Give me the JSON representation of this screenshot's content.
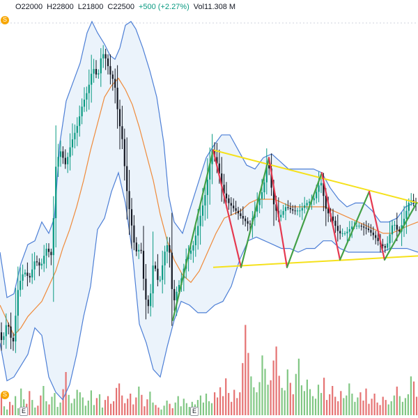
{
  "legend": {
    "open": "O22000",
    "high": "H22800",
    "low": "L21800",
    "close": "C22500",
    "change": "+500 (+2.27%)",
    "volume": "Vol11.308 M"
  },
  "events": [
    {
      "icon": "dividend-icon",
      "label": "S"
    },
    {
      "icon": "dividend-icon",
      "label": "S"
    },
    {
      "icon": "earnings-icon",
      "label": "E"
    },
    {
      "icon": "earnings-icon",
      "label": "E"
    }
  ],
  "colors": {
    "up": "#089981",
    "down": "#131722",
    "volume_up": "#81c784",
    "volume_down": "#e57373",
    "band": "#4d7fd6",
    "band_fill": "#dbe9f7",
    "ma": "#ef8a3a",
    "trendline": "#f5e11b",
    "zigzag_up": "#43a047",
    "zigzag_down": "#e53950"
  },
  "chart_data": {
    "type": "candlestick",
    "y_range": [
      18500,
      29000
    ],
    "volume_range": [
      0,
      16
    ],
    "price_path": [
      [
        0,
        20600
      ],
      [
        5,
        20300
      ],
      [
        12,
        20900
      ],
      [
        20,
        20200
      ],
      [
        28,
        21800
      ],
      [
        36,
        22200
      ],
      [
        44,
        22000
      ],
      [
        52,
        22500
      ],
      [
        60,
        22300
      ],
      [
        68,
        22800
      ],
      [
        76,
        22600
      ],
      [
        82,
        25000
      ],
      [
        88,
        25400
      ],
      [
        96,
        25000
      ],
      [
        104,
        25600
      ],
      [
        112,
        26000
      ],
      [
        120,
        26600
      ],
      [
        128,
        27000
      ],
      [
        135,
        27600
      ],
      [
        142,
        27300
      ],
      [
        148,
        28000
      ],
      [
        154,
        27800
      ],
      [
        160,
        27400
      ],
      [
        166,
        27200
      ],
      [
        172,
        26200
      ],
      [
        178,
        25600
      ],
      [
        182,
        24600
      ],
      [
        186,
        24000
      ],
      [
        190,
        23500
      ],
      [
        196,
        22700
      ],
      [
        204,
        22800
      ],
      [
        210,
        21500
      ],
      [
        216,
        21200
      ],
      [
        222,
        22500
      ],
      [
        230,
        21800
      ],
      [
        238,
        22700
      ],
      [
        244,
        23000
      ],
      [
        250,
        21300
      ],
      [
        256,
        21700
      ],
      [
        262,
        22000
      ],
      [
        270,
        22600
      ],
      [
        278,
        22800
      ],
      [
        286,
        23400
      ],
      [
        296,
        24200
      ],
      [
        306,
        25400
      ],
      [
        314,
        25000
      ],
      [
        322,
        24300
      ],
      [
        330,
        24000
      ],
      [
        340,
        23800
      ],
      [
        350,
        23600
      ],
      [
        360,
        23400
      ],
      [
        370,
        23900
      ],
      [
        380,
        24400
      ],
      [
        386,
        25200
      ],
      [
        394,
        24000
      ],
      [
        402,
        23600
      ],
      [
        412,
        23900
      ],
      [
        422,
        23800
      ],
      [
        432,
        23800
      ],
      [
        442,
        24000
      ],
      [
        452,
        24100
      ],
      [
        462,
        24600
      ],
      [
        470,
        23800
      ],
      [
        478,
        23600
      ],
      [
        488,
        23200
      ],
      [
        498,
        23200
      ],
      [
        508,
        23400
      ],
      [
        518,
        23400
      ],
      [
        530,
        23300
      ],
      [
        540,
        23100
      ],
      [
        548,
        22900
      ],
      [
        556,
        22800
      ],
      [
        566,
        23500
      ],
      [
        574,
        23200
      ],
      [
        582,
        23600
      ],
      [
        590,
        24100
      ],
      [
        598,
        24000
      ]
    ],
    "upper_band_path": [
      [
        0,
        22700
      ],
      [
        10,
        21500
      ],
      [
        20,
        21600
      ],
      [
        30,
        22400
      ],
      [
        40,
        22900
      ],
      [
        50,
        23000
      ],
      [
        60,
        23500
      ],
      [
        70,
        23200
      ],
      [
        78,
        23600
      ],
      [
        86,
        25600
      ],
      [
        95,
        26700
      ],
      [
        105,
        27200
      ],
      [
        115,
        27700
      ],
      [
        125,
        28500
      ],
      [
        132,
        28800
      ],
      [
        140,
        28500
      ],
      [
        150,
        28200
      ],
      [
        158,
        27900
      ],
      [
        165,
        27800
      ],
      [
        172,
        28100
      ],
      [
        180,
        28700
      ],
      [
        188,
        28800
      ],
      [
        195,
        28600
      ],
      [
        205,
        28100
      ],
      [
        215,
        27500
      ],
      [
        225,
        26800
      ],
      [
        235,
        25600
      ],
      [
        242,
        24200
      ],
      [
        250,
        23500
      ],
      [
        262,
        23200
      ],
      [
        272,
        23800
      ],
      [
        284,
        24500
      ],
      [
        296,
        25200
      ],
      [
        306,
        25500
      ],
      [
        318,
        25800
      ],
      [
        330,
        25800
      ],
      [
        342,
        25400
      ],
      [
        354,
        25000
      ],
      [
        366,
        24900
      ],
      [
        378,
        25200
      ],
      [
        390,
        25300
      ],
      [
        402,
        25100
      ],
      [
        414,
        24900
      ],
      [
        426,
        24900
      ],
      [
        438,
        24900
      ],
      [
        450,
        24900
      ],
      [
        462,
        24800
      ],
      [
        474,
        24400
      ],
      [
        486,
        24100
      ],
      [
        498,
        23900
      ],
      [
        510,
        24000
      ],
      [
        522,
        24000
      ],
      [
        534,
        23800
      ],
      [
        546,
        23500
      ],
      [
        558,
        23500
      ],
      [
        570,
        23600
      ],
      [
        582,
        23900
      ],
      [
        594,
        24000
      ],
      [
        600,
        24000
      ]
    ],
    "lower_band_path": [
      [
        0,
        20300
      ],
      [
        10,
        19300
      ],
      [
        20,
        19400
      ],
      [
        30,
        19700
      ],
      [
        40,
        20000
      ],
      [
        50,
        20700
      ],
      [
        60,
        20500
      ],
      [
        70,
        19400
      ],
      [
        80,
        19000
      ],
      [
        90,
        18800
      ],
      [
        100,
        19200
      ],
      [
        110,
        20000
      ],
      [
        120,
        21000
      ],
      [
        130,
        21800
      ],
      [
        140,
        23300
      ],
      [
        150,
        23600
      ],
      [
        160,
        24300
      ],
      [
        170,
        24800
      ],
      [
        180,
        24000
      ],
      [
        190,
        22700
      ],
      [
        200,
        20800
      ],
      [
        210,
        20300
      ],
      [
        220,
        19600
      ],
      [
        230,
        19400
      ],
      [
        240,
        20200
      ],
      [
        250,
        20900
      ],
      [
        260,
        21400
      ],
      [
        272,
        21300
      ],
      [
        284,
        21100
      ],
      [
        296,
        21100
      ],
      [
        308,
        21300
      ],
      [
        320,
        21400
      ],
      [
        332,
        21800
      ],
      [
        344,
        22500
      ],
      [
        356,
        23000
      ],
      [
        368,
        23100
      ],
      [
        380,
        23000
      ],
      [
        392,
        22900
      ],
      [
        404,
        22800
      ],
      [
        416,
        22800
      ],
      [
        428,
        22700
      ],
      [
        440,
        22800
      ],
      [
        452,
        22800
      ],
      [
        464,
        23000
      ],
      [
        476,
        23000
      ],
      [
        488,
        22800
      ],
      [
        500,
        22700
      ],
      [
        512,
        22700
      ],
      [
        524,
        22700
      ],
      [
        536,
        22700
      ],
      [
        548,
        22700
      ],
      [
        560,
        22800
      ],
      [
        572,
        22800
      ],
      [
        584,
        22800
      ],
      [
        600,
        22700
      ]
    ],
    "moving_average_path": [
      [
        0,
        21300
      ],
      [
        10,
        20900
      ],
      [
        20,
        20500
      ],
      [
        30,
        20700
      ],
      [
        40,
        21000
      ],
      [
        50,
        21200
      ],
      [
        60,
        21400
      ],
      [
        70,
        21800
      ],
      [
        80,
        22200
      ],
      [
        90,
        22800
      ],
      [
        100,
        23300
      ],
      [
        110,
        23900
      ],
      [
        120,
        24600
      ],
      [
        130,
        25400
      ],
      [
        140,
        26100
      ],
      [
        150,
        26800
      ],
      [
        160,
        27100
      ],
      [
        170,
        27300
      ],
      [
        180,
        27000
      ],
      [
        190,
        26600
      ],
      [
        200,
        26000
      ],
      [
        210,
        25300
      ],
      [
        220,
        24600
      ],
      [
        230,
        23700
      ],
      [
        240,
        23000
      ],
      [
        250,
        22500
      ],
      [
        262,
        22100
      ],
      [
        274,
        21900
      ],
      [
        286,
        22200
      ],
      [
        298,
        22700
      ],
      [
        310,
        23200
      ],
      [
        322,
        23600
      ],
      [
        334,
        23700
      ],
      [
        346,
        23800
      ],
      [
        358,
        24000
      ],
      [
        370,
        24100
      ],
      [
        382,
        24100
      ],
      [
        394,
        24100
      ],
      [
        406,
        24000
      ],
      [
        418,
        23900
      ],
      [
        430,
        23900
      ],
      [
        442,
        23900
      ],
      [
        454,
        23900
      ],
      [
        466,
        23900
      ],
      [
        478,
        23800
      ],
      [
        490,
        23700
      ],
      [
        502,
        23600
      ],
      [
        514,
        23500
      ],
      [
        526,
        23400
      ],
      [
        538,
        23300
      ],
      [
        550,
        23200
      ],
      [
        562,
        23200
      ],
      [
        574,
        23300
      ],
      [
        586,
        23400
      ],
      [
        600,
        23500
      ]
    ],
    "volume": [
      3.2,
      1.4,
      0.9,
      2.1,
      1.6,
      3.0,
      1.1,
      4.2,
      2.5,
      1.8,
      3.8,
      2.4,
      1.2,
      1.5,
      3.1,
      4.6,
      2.2,
      1.7,
      2.9,
      3.5,
      1.3,
      2.0,
      4.1,
      6.8,
      3.2,
      1.9,
      2.6,
      4.0,
      3.6,
      2.8,
      1.5,
      2.3,
      3.9,
      1.6,
      2.7,
      3.3,
      1.2,
      2.4,
      3.0,
      1.8,
      2.2,
      4.3,
      5.0,
      3.1,
      1.9,
      2.6,
      3.4,
      1.7,
      2.8,
      4.5,
      3.2,
      1.4,
      2.5,
      3.7,
      2.0,
      1.6,
      1.2,
      0.9,
      1.5,
      2.3,
      1.8,
      1.1,
      2.0,
      3.0,
      1.4,
      2.6,
      1.9,
      1.3,
      2.1,
      1.7,
      2.4,
      3.1,
      2.0,
      3.4,
      2.2,
      1.9,
      3.6,
      2.8,
      4.4,
      3.0,
      5.8,
      3.5,
      2.1,
      4.0,
      2.7,
      3.6,
      8.2,
      14.2,
      9.8,
      6.1,
      4.4,
      3.6,
      5.2,
      9.4,
      7.3,
      4.8,
      5.5,
      8.6,
      10.8,
      6.2,
      4.3,
      3.9,
      7.2,
      5.1,
      3.3,
      6.5,
      8.9,
      4.7,
      3.8,
      5.6,
      4.1,
      3.0,
      2.6,
      4.8,
      3.5,
      5.9,
      2.4,
      3.3,
      4.6,
      2.9,
      2.2,
      3.8,
      2.7,
      3.1,
      5.0,
      3.4,
      2.1,
      2.8,
      3.6,
      2.3,
      4.2,
      1.8,
      2.6,
      3.4,
      2.0,
      1.6,
      2.9,
      2.4,
      1.7,
      2.2,
      3.1,
      4.5,
      3.0,
      2.1,
      2.7,
      3.3,
      6.1,
      5.3,
      2.9
    ],
    "triangle_upper": [
      [
        306,
        25400
      ],
      [
        600,
        24000
      ]
    ],
    "triangle_lower": [
      [
        306,
        22300
      ],
      [
        600,
        22600
      ]
    ],
    "zigzag": [
      [
        248,
        20900
      ],
      [
        306,
        25400
      ],
      [
        346,
        22300
      ],
      [
        386,
        25200
      ],
      [
        412,
        22300
      ],
      [
        462,
        24800
      ],
      [
        488,
        22500
      ],
      [
        530,
        24300
      ],
      [
        552,
        22500
      ],
      [
        598,
        24000
      ]
    ],
    "event_x": [
      6,
      6,
      33,
      278
    ],
    "event_y": [
      18000,
      29000,
      18000,
      18000
    ]
  }
}
